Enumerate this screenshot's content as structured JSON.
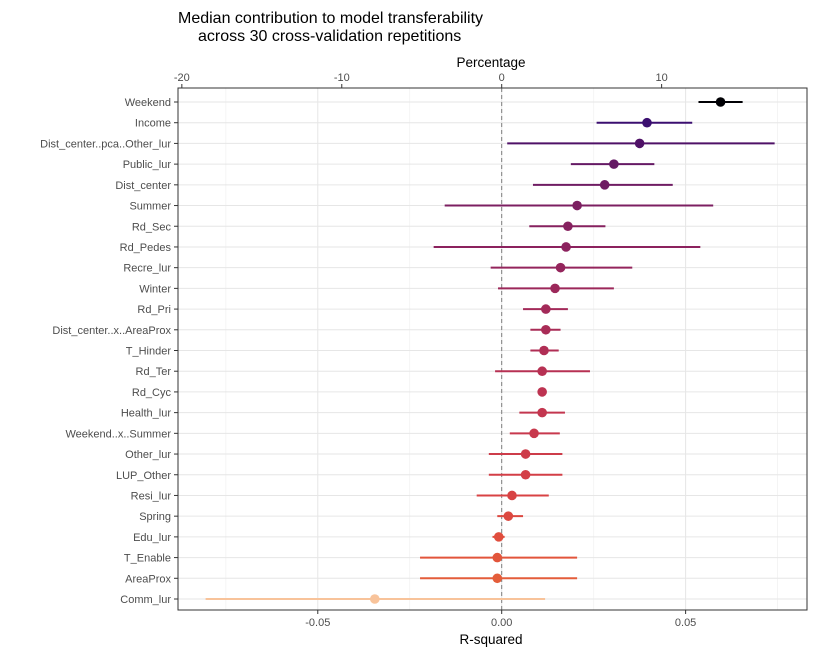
{
  "chart_data": {
    "type": "dot-interval",
    "title_lines": [
      "Median contribution to model transferability",
      "across 30 cross-validation repetitions"
    ],
    "xlabel": "R-squared",
    "x2label": "Percentage",
    "xlim": [
      -0.088,
      0.083
    ],
    "x_ticks": [
      -0.05,
      0.0,
      0.05
    ],
    "x_tick_labels": [
      "-0.05",
      "0.00",
      "0.05"
    ],
    "x2_ticks": [
      -20,
      -10,
      0,
      10
    ],
    "x2_tick_labels": [
      "-20",
      "-10",
      "0",
      "10"
    ],
    "percent_per_unit": 230,
    "reference_line_x": 0,
    "grid": true,
    "legend": "none",
    "categories": [
      "Weekend",
      "Income",
      "Dist_center..pca..Other_lur",
      "Public_lur",
      "Dist_center",
      "Summer",
      "Rd_Sec",
      "Rd_Pedes",
      "Recre_lur",
      "Winter",
      "Rd_Pri",
      "Dist_center..x..AreaProx",
      "T_Hinder",
      "Rd_Ter",
      "Rd_Cyc",
      "Health_lur",
      "Weekend..x..Summer",
      "Other_lur",
      "LUP_Other",
      "Resi_lur",
      "Spring",
      "Edu_lur",
      "T_Enable",
      "AreaProx",
      "Comm_lur"
    ],
    "median": [
      0.0595,
      0.0395,
      0.0375,
      0.0305,
      0.028,
      0.0205,
      0.018,
      0.0175,
      0.016,
      0.0145,
      0.012,
      0.012,
      0.0115,
      0.011,
      0.011,
      0.011,
      0.0088,
      0.0065,
      0.0065,
      0.0028,
      0.0018,
      -0.0008,
      -0.0012,
      -0.0012,
      -0.0345
    ],
    "lower": [
      0.0535,
      0.0258,
      0.0015,
      0.0188,
      0.0085,
      -0.0155,
      0.0075,
      -0.0185,
      -0.003,
      -0.001,
      0.0058,
      0.0078,
      0.0078,
      -0.0018,
      0.0098,
      0.0048,
      0.0022,
      -0.0035,
      -0.0035,
      -0.0068,
      -0.0012,
      -0.0025,
      -0.0222,
      -0.0222,
      -0.0805
    ],
    "upper": [
      0.0655,
      0.0518,
      0.0742,
      0.0415,
      0.0465,
      0.0575,
      0.0282,
      0.054,
      0.0355,
      0.0305,
      0.018,
      0.016,
      0.0155,
      0.024,
      0.012,
      0.0172,
      0.0158,
      0.0165,
      0.0165,
      0.0128,
      0.0058,
      0.0008,
      0.0205,
      0.0205,
      0.0118
    ],
    "colors": [
      "#000004",
      "#3b0f70",
      "#4f1167",
      "#651964",
      "#6f1c63",
      "#7c1f61",
      "#86215f",
      "#8c225e",
      "#94255c",
      "#9c285a",
      "#a32a59",
      "#a92c57",
      "#b02e55",
      "#b73153",
      "#bd3351",
      "#c3364f",
      "#c8394d",
      "#cd3c4a",
      "#d33f47",
      "#d84344",
      "#dc4840",
      "#e04d3d",
      "#e2553b",
      "#e45d3a",
      "#f8c39a"
    ]
  }
}
